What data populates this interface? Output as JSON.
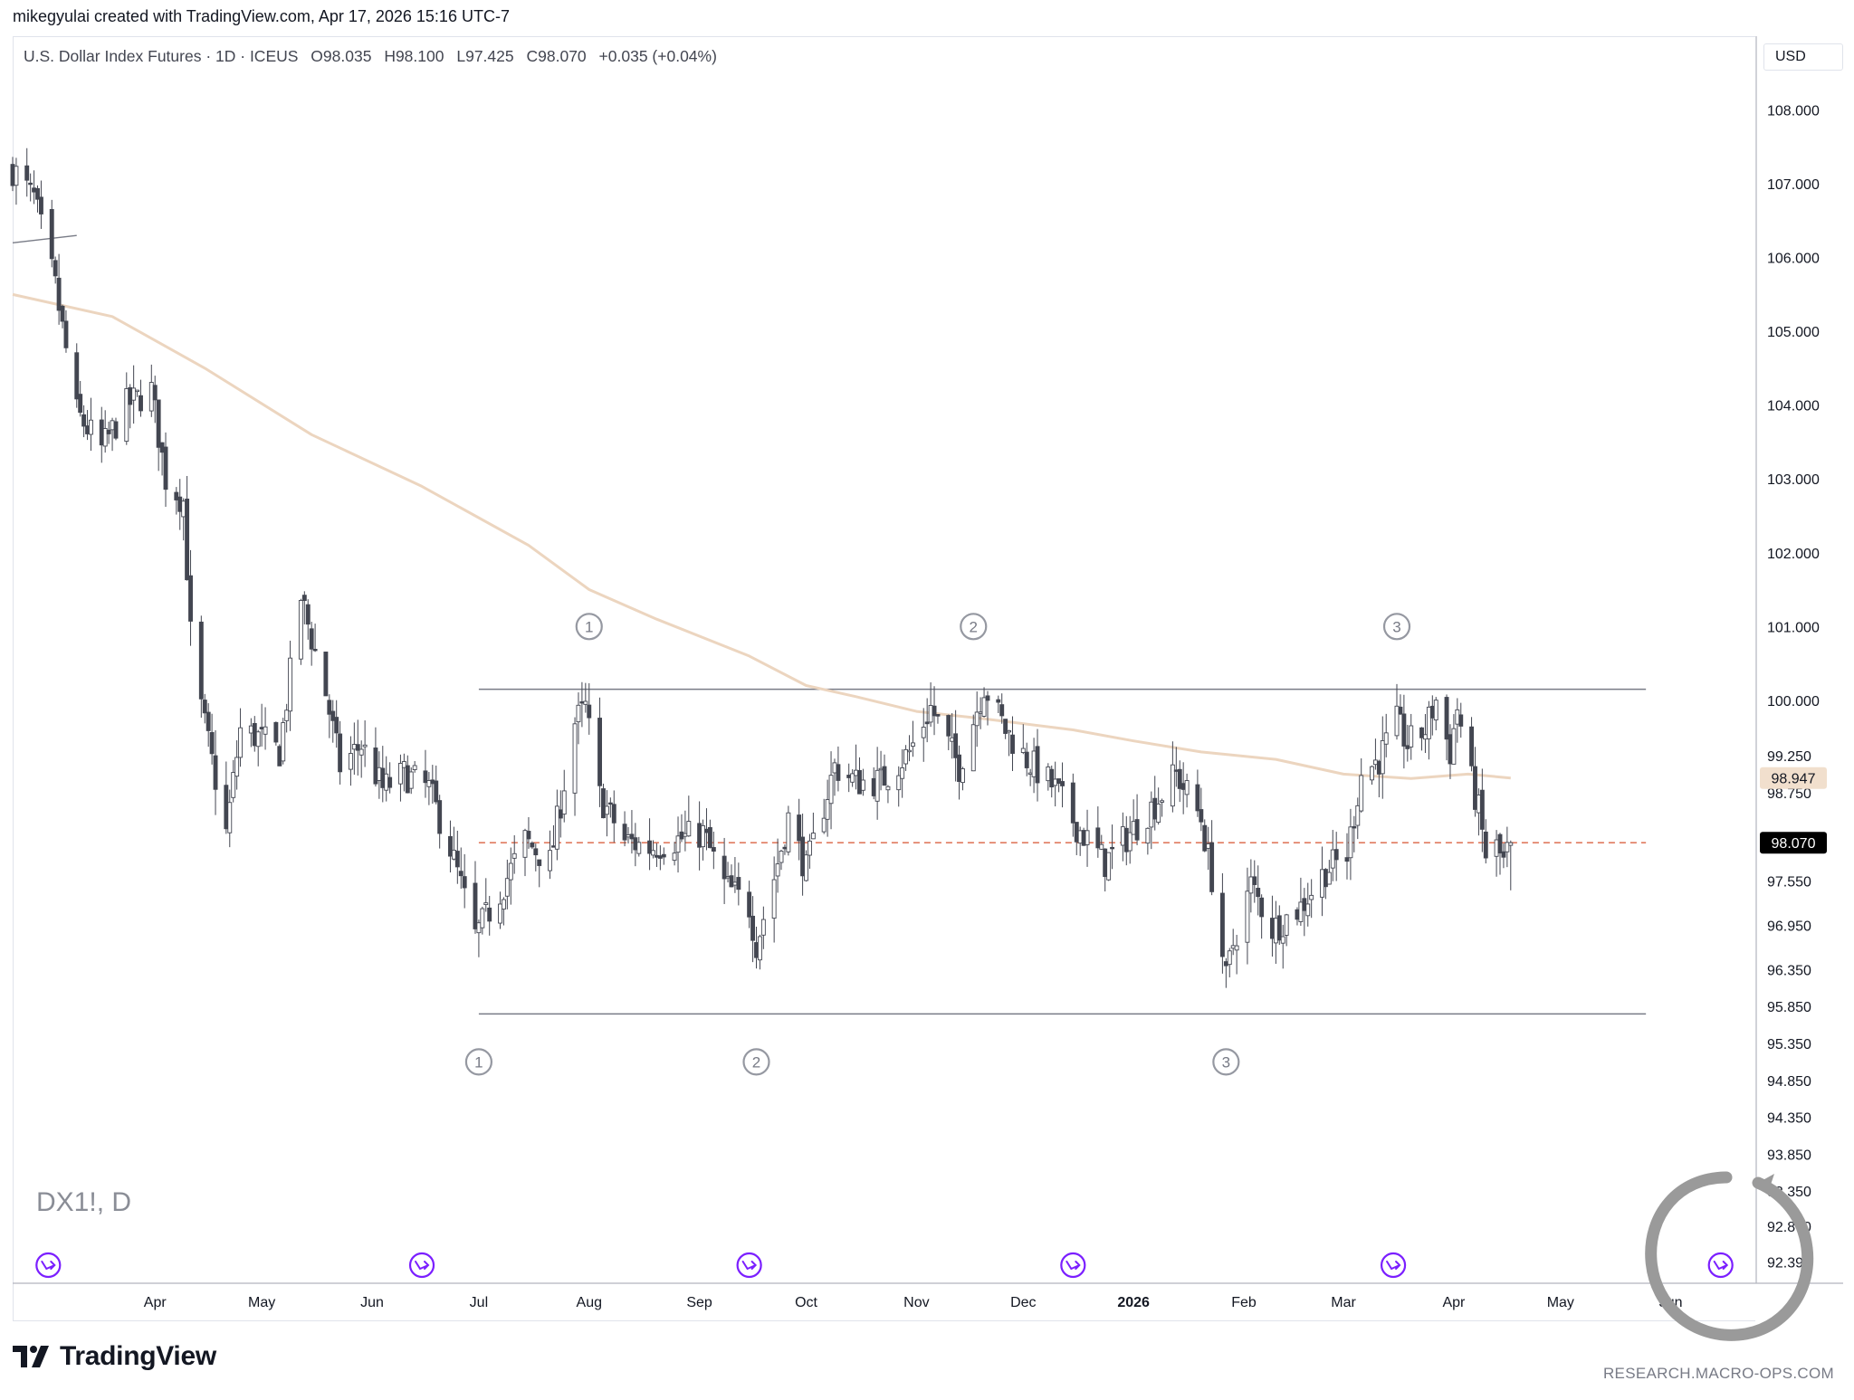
{
  "header": {
    "attribution": "mikegyulai created with TradingView.com, Apr 17, 2026 15:16 UTC-7"
  },
  "legend": {
    "symbol": "U.S. Dollar Index Futures · 1D · ICEUS",
    "open": "O98.035",
    "high": "H98.100",
    "low": "L97.425",
    "close": "C98.070",
    "change": "+0.035 (+0.04%)"
  },
  "currency": "USD",
  "symbol_watermark": "DX1!, D",
  "branding": {
    "logo_text": "TradingView",
    "credit": "RESEARCH.MACRO-OPS.COM"
  },
  "colors": {
    "bull_fill": "#ffffff",
    "bear_fill": "#434651",
    "candle_outline": "#434651",
    "ma_line": "#ecd5bf",
    "support_line": "#787b86",
    "price_line": "#e07a5f",
    "ma_badge": "#f1dfcd",
    "price_badge": "#000000",
    "marker_circle": "#9598a1",
    "event_icon": "#7b1fff"
  },
  "chart_data": {
    "type": "candlestick",
    "ylim": [
      92.1,
      109.0
    ],
    "xlim": [
      "2025-02-20",
      "2026-06-25"
    ],
    "y_ticks": [
      "108.000",
      "107.000",
      "106.000",
      "105.000",
      "104.000",
      "103.000",
      "102.000",
      "101.000",
      "100.000",
      "99.250",
      "98.750",
      "97.550",
      "96.950",
      "96.350",
      "95.850",
      "95.350",
      "94.850",
      "94.350",
      "93.850",
      "93.350",
      "92.870",
      "92.390"
    ],
    "y_tick_values": [
      108.0,
      107.0,
      106.0,
      105.0,
      104.0,
      103.0,
      102.0,
      101.0,
      100.0,
      99.25,
      98.75,
      97.55,
      96.95,
      96.35,
      95.85,
      95.35,
      94.85,
      94.35,
      93.85,
      93.35,
      92.87,
      92.39
    ],
    "x_ticks": [
      {
        "date": "2025-04-01",
        "label": "Apr",
        "bold": false
      },
      {
        "date": "2025-05-01",
        "label": "May",
        "bold": false
      },
      {
        "date": "2025-06-01",
        "label": "Jun",
        "bold": false
      },
      {
        "date": "2025-07-01",
        "label": "Jul",
        "bold": false
      },
      {
        "date": "2025-08-01",
        "label": "Aug",
        "bold": false
      },
      {
        "date": "2025-09-01",
        "label": "Sep",
        "bold": false
      },
      {
        "date": "2025-10-01",
        "label": "Oct",
        "bold": false
      },
      {
        "date": "2025-11-01",
        "label": "Nov",
        "bold": false
      },
      {
        "date": "2025-12-01",
        "label": "Dec",
        "bold": false
      },
      {
        "date": "2026-01-01",
        "label": "2026",
        "bold": true
      },
      {
        "date": "2026-02-01",
        "label": "Feb",
        "bold": false
      },
      {
        "date": "2026-03-01",
        "label": "Mar",
        "bold": false
      },
      {
        "date": "2026-04-01",
        "label": "Apr",
        "bold": false
      },
      {
        "date": "2026-05-01",
        "label": "May",
        "bold": false
      },
      {
        "date": "2026-06-01",
        "label": "Jun",
        "bold": false
      }
    ],
    "price_path": [
      [
        "2025-02-20",
        107.2
      ],
      [
        "2025-02-26",
        106.8
      ],
      [
        "2025-03-04",
        105.6
      ],
      [
        "2025-03-10",
        103.9
      ],
      [
        "2025-03-17",
        103.4
      ],
      [
        "2025-03-24",
        104.0
      ],
      [
        "2025-03-31",
        104.2
      ],
      [
        "2025-04-04",
        103.0
      ],
      [
        "2025-04-09",
        102.7
      ],
      [
        "2025-04-11",
        100.9
      ],
      [
        "2025-04-14",
        99.9
      ],
      [
        "2025-04-21",
        98.2
      ],
      [
        "2025-04-25",
        99.6
      ],
      [
        "2025-04-30",
        99.5
      ],
      [
        "2025-05-06",
        99.3
      ],
      [
        "2025-05-12",
        101.4
      ],
      [
        "2025-05-19",
        100.1
      ],
      [
        "2025-05-23",
        99.1
      ],
      [
        "2025-05-29",
        99.4
      ],
      [
        "2025-06-04",
        98.8
      ],
      [
        "2025-06-10",
        99.0
      ],
      [
        "2025-06-17",
        98.8
      ],
      [
        "2025-06-23",
        98.0
      ],
      [
        "2025-06-30",
        96.8
      ],
      [
        "2025-07-07",
        97.4
      ],
      [
        "2025-07-14",
        98.1
      ],
      [
        "2025-07-21",
        97.8
      ],
      [
        "2025-07-28",
        99.7
      ],
      [
        "2025-07-31",
        99.9
      ],
      [
        "2025-08-04",
        98.7
      ],
      [
        "2025-08-11",
        98.1
      ],
      [
        "2025-08-18",
        98.0
      ],
      [
        "2025-08-25",
        98.1
      ],
      [
        "2025-09-02",
        98.2
      ],
      [
        "2025-09-08",
        97.5
      ],
      [
        "2025-09-15",
        97.2
      ],
      [
        "2025-09-17",
        96.7
      ],
      [
        "2025-09-22",
        97.6
      ],
      [
        "2025-09-26",
        98.4
      ],
      [
        "2025-10-01",
        97.7
      ],
      [
        "2025-10-09",
        99.1
      ],
      [
        "2025-10-15",
        98.9
      ],
      [
        "2025-10-22",
        98.9
      ],
      [
        "2025-10-30",
        99.3
      ],
      [
        "2025-11-05",
        99.9
      ],
      [
        "2025-11-13",
        99.1
      ],
      [
        "2025-11-20",
        100.2
      ],
      [
        "2025-11-26",
        99.6
      ],
      [
        "2025-12-02",
        99.2
      ],
      [
        "2025-12-10",
        98.8
      ],
      [
        "2025-12-16",
        98.3
      ],
      [
        "2025-12-24",
        97.8
      ],
      [
        "2025-12-31",
        98.2
      ],
      [
        "2026-01-07",
        98.6
      ],
      [
        "2026-01-13",
        99.0
      ],
      [
        "2026-01-20",
        98.4
      ],
      [
        "2026-01-23",
        97.6
      ],
      [
        "2026-01-27",
        96.2
      ],
      [
        "2026-01-29",
        96.7
      ],
      [
        "2026-02-03",
        97.5
      ],
      [
        "2026-02-09",
        96.9
      ],
      [
        "2026-02-17",
        97.2
      ],
      [
        "2026-02-24",
        97.7
      ],
      [
        "2026-03-02",
        97.9
      ],
      [
        "2026-03-06",
        99.0
      ],
      [
        "2026-03-11",
        99.2
      ],
      [
        "2026-03-16",
        99.7
      ],
      [
        "2026-03-19",
        99.4
      ],
      [
        "2026-03-24",
        99.6
      ],
      [
        "2026-03-27",
        100.0
      ],
      [
        "2026-03-31",
        99.3
      ],
      [
        "2026-04-02",
        99.9
      ],
      [
        "2026-04-06",
        98.9
      ],
      [
        "2026-04-08",
        98.5
      ],
      [
        "2026-04-10",
        97.9
      ],
      [
        "2026-04-13",
        98.0
      ],
      [
        "2026-04-15",
        97.8
      ],
      [
        "2026-04-17",
        98.07
      ]
    ],
    "moving_average": [
      [
        "2025-02-20",
        105.5
      ],
      [
        "2025-03-20",
        105.2
      ],
      [
        "2025-04-15",
        104.5
      ],
      [
        "2025-05-15",
        103.6
      ],
      [
        "2025-06-15",
        102.9
      ],
      [
        "2025-07-15",
        102.1
      ],
      [
        "2025-08-01",
        101.5
      ],
      [
        "2025-08-20",
        101.1
      ],
      [
        "2025-09-15",
        100.6
      ],
      [
        "2025-10-01",
        100.2
      ],
      [
        "2025-10-15",
        100.05
      ],
      [
        "2025-11-01",
        99.85
      ],
      [
        "2025-11-20",
        99.75
      ],
      [
        "2025-12-15",
        99.6
      ],
      [
        "2026-01-01",
        99.45
      ],
      [
        "2026-01-20",
        99.3
      ],
      [
        "2026-02-10",
        99.2
      ],
      [
        "2026-03-01",
        99.0
      ],
      [
        "2026-03-20",
        98.94
      ],
      [
        "2026-04-05",
        99.0
      ],
      [
        "2026-04-17",
        98.947
      ]
    ],
    "series": [
      {
        "name": "DX1!",
        "type": "candlestick"
      }
    ],
    "trendline": {
      "start": [
        "2025-02-20",
        106.2
      ],
      "end": [
        "2025-03-10",
        106.3
      ]
    },
    "range_lines": [
      {
        "value": 100.15,
        "start": "2025-07-01",
        "end": "2026-05-25"
      },
      {
        "value": 95.75,
        "start": "2025-07-01",
        "end": "2026-05-25"
      }
    ],
    "price_line": {
      "value": 98.07,
      "start": "2025-07-01",
      "end": "2026-05-25"
    },
    "badges": [
      {
        "label": "98.947",
        "value": 98.947,
        "kind": "ma"
      },
      {
        "label": "98.070",
        "value": 98.07,
        "kind": "price"
      }
    ],
    "markers": [
      {
        "label": "1",
        "date": "2025-08-01",
        "value": 101.0
      },
      {
        "label": "2",
        "date": "2025-11-17",
        "value": 101.0
      },
      {
        "label": "3",
        "date": "2026-03-16",
        "value": 101.0
      },
      {
        "label": "1",
        "date": "2025-07-01",
        "value": 95.1
      },
      {
        "label": "2",
        "date": "2025-09-17",
        "value": 95.1
      },
      {
        "label": "3",
        "date": "2026-01-27",
        "value": 95.1
      }
    ],
    "events": [
      "2025-03-02",
      "2025-06-15",
      "2025-09-15",
      "2025-12-15",
      "2026-03-15",
      "2026-06-15"
    ]
  }
}
